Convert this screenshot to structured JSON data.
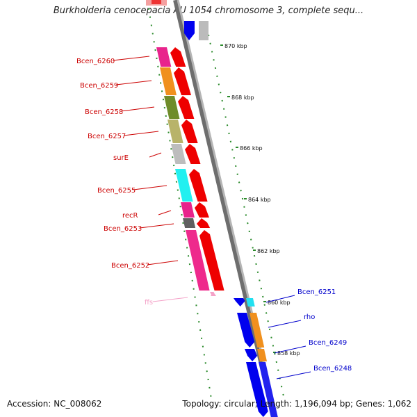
{
  "title": "Burkholderia cenocepacia AU 1054 chromosome 3, complete sequ...",
  "footer": {
    "accession": "Accession: NC_008062",
    "summary": "Topology: circular; Length: 1,196,094 bp; Genes: 1,062"
  },
  "ticks": [
    "870 kbp",
    "868 kbp",
    "866 kbp",
    "864 kbp",
    "862 kbp",
    "860 kbp",
    "858 kbp"
  ],
  "left_genes": [
    {
      "name": "Bcen_6260",
      "color": "#e8248c"
    },
    {
      "name": "Bcen_6259",
      "color": "#f0901e"
    },
    {
      "name": "Bcen_6258",
      "color": "#6f8c2a"
    },
    {
      "name": "Bcen_6257",
      "color": "#b8b36a"
    },
    {
      "name": "surE",
      "color": "#bdbdbd"
    },
    {
      "name": "Bcen_6255",
      "color": "#22f0f0"
    },
    {
      "name": "recR",
      "color": "#e8248c"
    },
    {
      "name": "Bcen_6253",
      "color": "#606060"
    },
    {
      "name": "Bcen_6252",
      "color": "#ee2a8c"
    },
    {
      "name": "ffs",
      "color": "#f4a2c8"
    }
  ],
  "right_genes": [
    {
      "name": "Bcen_6251",
      "color": "#22e0f0"
    },
    {
      "name": "rho",
      "color": "#f0901e"
    },
    {
      "name": "Bcen_6249",
      "color": "#f0901e"
    },
    {
      "name": "Bcen_6248",
      "color": "#2222ee"
    }
  ],
  "colors": {
    "left_label": "#cc0000",
    "right_label": "#0000cc",
    "rna_label": "#f4a2c8",
    "left_strand": "#ee0000",
    "right_strand": "#0000ee",
    "gc_dash": "#2a8a2a",
    "backbone": "#8c8c8c"
  }
}
